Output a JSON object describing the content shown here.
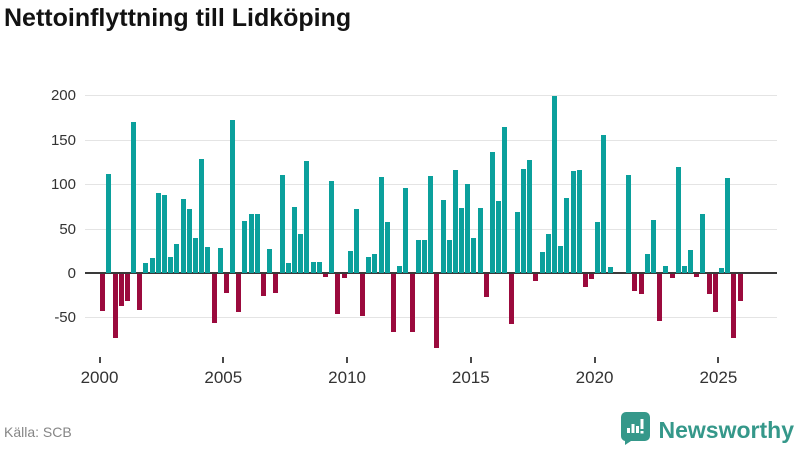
{
  "header": {
    "title": "Nettoinflyttning till Lidköping"
  },
  "footer": {
    "source": "Källa: SCB",
    "brand": "Newsworthy",
    "brand_icon": "newsworthy-bar-chart-bubble-icon"
  },
  "colors": {
    "positive": "#0ba09c",
    "negative": "#9b0a3d",
    "grid": "#e4e4e4",
    "zero_line": "#3a3a3a",
    "axis_text": "#333333",
    "title_text": "#121212",
    "source_text": "#868686",
    "brand_teal": "#35988a"
  },
  "chart_data": {
    "type": "bar",
    "title": "Nettoinflyttning till Lidköping",
    "x_unit": "quarter",
    "x_start": "2000-Q1",
    "x_end": "2025-Q4",
    "x_tick_labels": [
      "2000",
      "2005",
      "2010",
      "2015",
      "2020",
      "2025"
    ],
    "y_ticks": [
      200,
      150,
      100,
      50,
      0,
      -50
    ],
    "ylim": [
      -90,
      210
    ],
    "grid": "horizontal",
    "legend": "none",
    "series": [
      {
        "name": "Nettoinflyttning",
        "values": [
          -42,
          112,
          -72,
          -36,
          -30,
          170,
          -40,
          11,
          17,
          90,
          88,
          18,
          33,
          83,
          72,
          40,
          128,
          29,
          -55,
          28,
          -21,
          172,
          -43,
          59,
          67,
          67,
          -25,
          27,
          -21,
          110,
          11,
          74,
          44,
          126,
          12,
          13,
          -3,
          104,
          -45,
          -5,
          25,
          72,
          -47,
          18,
          21,
          108,
          58,
          -65,
          8,
          96,
          -65,
          37,
          37,
          109,
          -83,
          82,
          37,
          116,
          73,
          100,
          40,
          73,
          -26,
          136,
          81,
          164,
          -56,
          69,
          117,
          127,
          -8,
          24,
          44,
          199,
          31,
          85,
          115,
          116,
          -15,
          -6,
          58,
          156,
          7,
          0,
          0,
          110,
          -19,
          -23,
          22,
          60,
          -53,
          8,
          -4,
          119,
          8,
          26,
          -3,
          67,
          -23,
          -43,
          6,
          107,
          -72,
          -30
        ]
      }
    ]
  }
}
